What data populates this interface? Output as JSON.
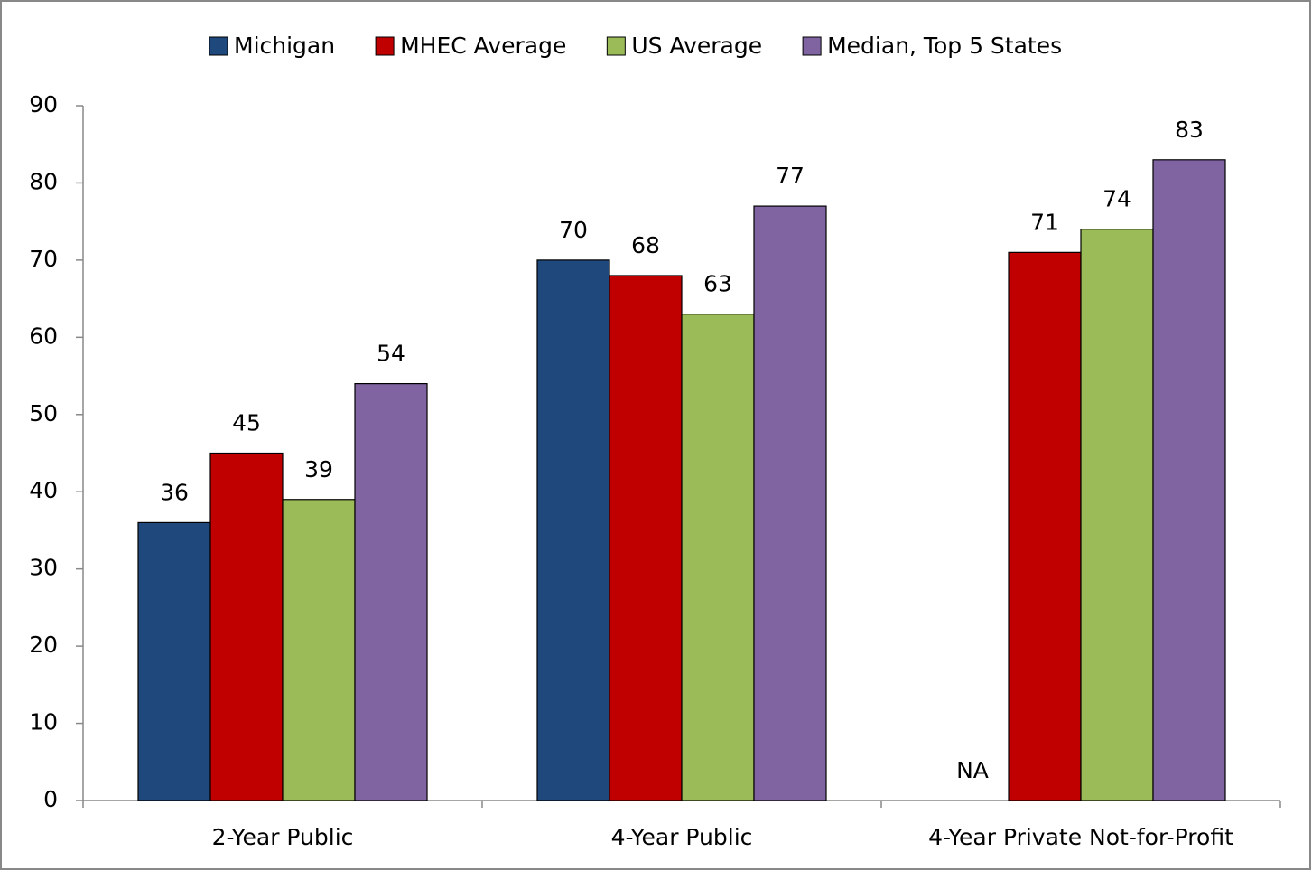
{
  "chart_data": {
    "type": "bar",
    "categories": [
      "2-Year Public",
      "4-Year Public",
      "4-Year Private Not-for-Profit"
    ],
    "series": [
      {
        "name": "Michigan",
        "color": "#1f497d",
        "values": [
          36,
          70,
          null
        ],
        "value_labels": [
          "36",
          "70",
          "NA"
        ]
      },
      {
        "name": "MHEC Average",
        "color": "#c00000",
        "values": [
          45,
          68,
          71
        ]
      },
      {
        "name": "US Average",
        "color": "#9bbb59",
        "values": [
          39,
          63,
          74
        ]
      },
      {
        "name": "Median, Top 5 States",
        "color": "#8064a2",
        "values": [
          54,
          77,
          83
        ]
      }
    ],
    "ylim": [
      0,
      90
    ],
    "yticks": [
      0,
      10,
      20,
      30,
      40,
      50,
      60,
      70,
      80,
      90
    ],
    "legend": "top",
    "grid": false
  }
}
